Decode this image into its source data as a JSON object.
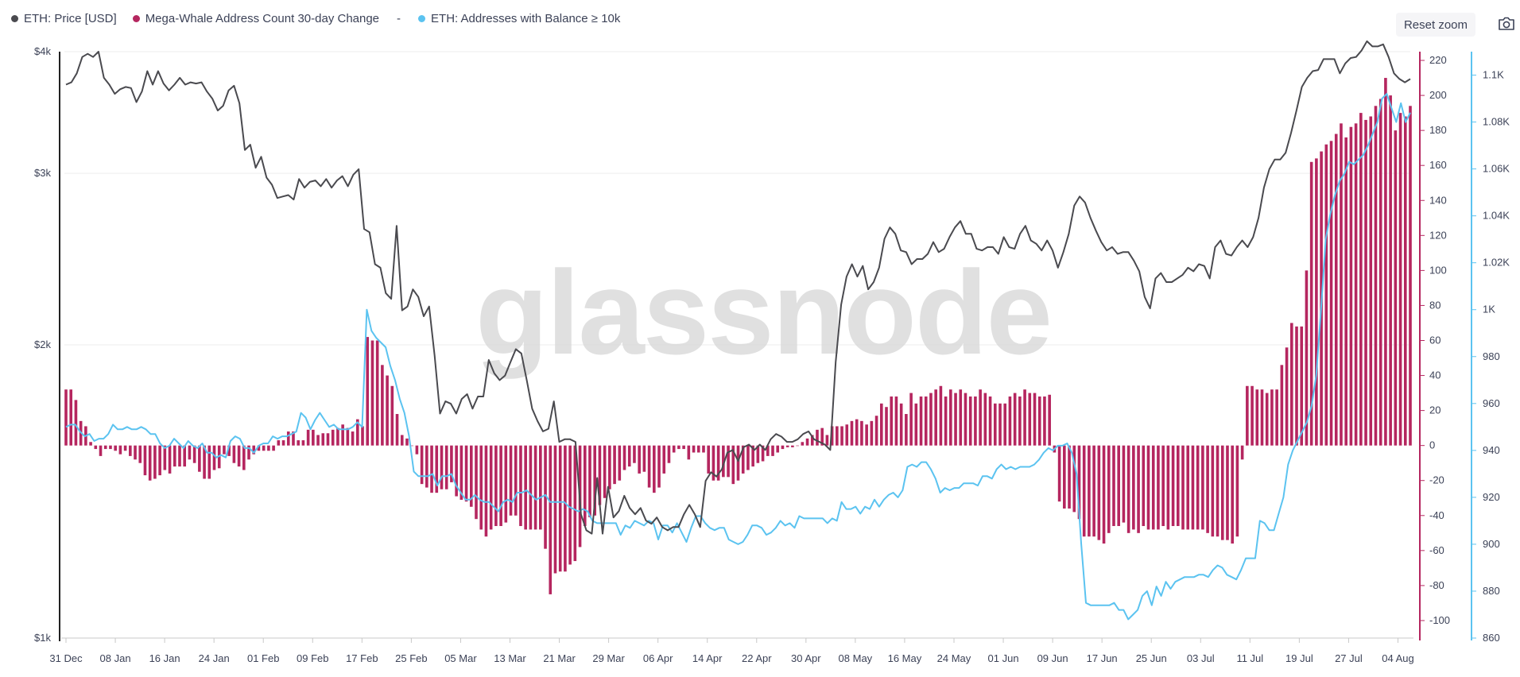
{
  "legend": {
    "price_label": "ETH: Price [USD]",
    "whale_label": "Mega-Whale Address Count 30-day Change",
    "separator": "-",
    "addr_label": "ETH: Addresses with Balance ≥ 10k"
  },
  "toolbar": {
    "reset_zoom_label": "Reset zoom",
    "camera_icon": "camera-icon"
  },
  "watermark": "glassnode",
  "colors": {
    "price": "#4a4a4f",
    "whale": "#b5265f",
    "addr": "#5bc3f0",
    "grid": "#eeeeee",
    "axis_text": "#3c4257"
  },
  "chart_data": {
    "type": "line",
    "x_ticks": [
      "31 Dec",
      "08 Jan",
      "16 Jan",
      "24 Jan",
      "01 Feb",
      "09 Feb",
      "17 Feb",
      "25 Feb",
      "05 Mar",
      "13 Mar",
      "21 Mar",
      "29 Mar",
      "06 Apr",
      "14 Apr",
      "22 Apr",
      "30 Apr",
      "08 May",
      "16 May",
      "24 May",
      "01 Jun",
      "09 Jun",
      "17 Jun",
      "25 Jun",
      "03 Jul",
      "11 Jul",
      "19 Jul",
      "27 Jul",
      "04 Aug"
    ],
    "x_range_days": [
      0,
      218
    ],
    "y_left": {
      "ticks": [
        "$1k",
        "$2k",
        "$3k",
        "$4k"
      ],
      "values": [
        1000,
        2000,
        3000,
        4000
      ],
      "scale": "log",
      "range": [
        1000,
        4000
      ]
    },
    "y_right_bars": {
      "ticks": [
        "-100",
        "-80",
        "-60",
        "-40",
        "-20",
        "0",
        "20",
        "40",
        "60",
        "80",
        "100",
        "120",
        "140",
        "160",
        "180",
        "200",
        "220"
      ],
      "range": [
        -110,
        225
      ]
    },
    "y_right_addr": {
      "ticks": [
        "860",
        "880",
        "900",
        "920",
        "940",
        "960",
        "980",
        "1K",
        "1.02K",
        "1.04K",
        "1.06K",
        "1.08K",
        "1.1K"
      ],
      "range": [
        860,
        1110
      ]
    },
    "grid": true,
    "legend_position": "top-left",
    "series": [
      {
        "name": "ETH: Price [USD]",
        "type": "line",
        "axis": "left",
        "values": [
          3700,
          3720,
          3800,
          3950,
          3980,
          3950,
          4000,
          3760,
          3700,
          3620,
          3660,
          3680,
          3670,
          3550,
          3640,
          3820,
          3700,
          3820,
          3710,
          3650,
          3700,
          3760,
          3700,
          3720,
          3710,
          3720,
          3640,
          3580,
          3480,
          3520,
          3650,
          3690,
          3540,
          3170,
          3210,
          3040,
          3120,
          2970,
          2920,
          2830,
          2840,
          2850,
          2820,
          2960,
          2900,
          2940,
          2950,
          2910,
          2960,
          2900,
          2950,
          2980,
          2910,
          2990,
          3030,
          2630,
          2610,
          2420,
          2400,
          2260,
          2230,
          2650,
          2170,
          2190,
          2280,
          2240,
          2140,
          2190,
          1950,
          1700,
          1750,
          1740,
          1700,
          1760,
          1780,
          1720,
          1770,
          1770,
          1930,
          1870,
          1840,
          1860,
          1920,
          1980,
          1960,
          1840,
          1720,
          1670,
          1630,
          1640,
          1750,
          1590,
          1600,
          1600,
          1590,
          1340,
          1290,
          1280,
          1460,
          1280,
          1430,
          1330,
          1350,
          1400,
          1360,
          1340,
          1360,
          1320,
          1310,
          1330,
          1300,
          1290,
          1300,
          1300,
          1340,
          1370,
          1340,
          1300,
          1450,
          1480,
          1465,
          1490,
          1550,
          1560,
          1520,
          1570,
          1580,
          1560,
          1580,
          1560,
          1600,
          1620,
          1610,
          1590,
          1590,
          1600,
          1620,
          1630,
          1600,
          1590,
          1580,
          1560,
          1920,
          2200,
          2350,
          2420,
          2350,
          2410,
          2280,
          2320,
          2400,
          2570,
          2640,
          2600,
          2500,
          2490,
          2420,
          2450,
          2450,
          2480,
          2550,
          2490,
          2510,
          2580,
          2640,
          2680,
          2600,
          2600,
          2510,
          2500,
          2520,
          2520,
          2480,
          2580,
          2520,
          2510,
          2600,
          2650,
          2560,
          2540,
          2500,
          2560,
          2500,
          2400,
          2490,
          2600,
          2780,
          2840,
          2800,
          2700,
          2620,
          2550,
          2500,
          2520,
          2480,
          2490,
          2490,
          2440,
          2380,
          2240,
          2180,
          2340,
          2370,
          2320,
          2320,
          2340,
          2360,
          2400,
          2380,
          2420,
          2410,
          2340,
          2520,
          2560,
          2480,
          2470,
          2520,
          2560,
          2520,
          2580,
          2700,
          2900,
          3030,
          3100,
          3100,
          3150,
          3300,
          3480,
          3680,
          3760,
          3820,
          3830,
          3930,
          3930,
          3930,
          3800,
          3890,
          3940,
          3950,
          4010,
          4100,
          4050,
          4050,
          4070,
          3950,
          3800,
          3750,
          3720,
          3750
        ]
      },
      {
        "name": "Mega-Whale Address Count 30-day Change",
        "type": "bar",
        "axis": "right",
        "values": [
          32,
          32,
          26,
          14,
          11,
          2,
          -2,
          -6,
          -2,
          -2,
          -3,
          -5,
          -3,
          -6,
          -8,
          -10,
          -17,
          -20,
          -19,
          -17,
          -14,
          -16,
          -12,
          -12,
          -12,
          -8,
          -10,
          -15,
          -19,
          -19,
          -14,
          -13,
          -5,
          -6,
          -10,
          -12,
          -14,
          -8,
          -5,
          -3,
          -3,
          -3,
          -3,
          3,
          3,
          8,
          8,
          3,
          3,
          9,
          9,
          6,
          7,
          7,
          9,
          10,
          12,
          10,
          8,
          15,
          11,
          62,
          60,
          60,
          46,
          40,
          34,
          18,
          6,
          4,
          0,
          -5,
          -22,
          -24,
          -27,
          -27,
          -25,
          -25,
          -21,
          -29,
          -31,
          -32,
          -35,
          -42,
          -48,
          -52,
          -48,
          -46,
          -46,
          -44,
          -40,
          -40,
          -46,
          -48,
          -48,
          -48,
          -48,
          -59,
          -85,
          -73,
          -72,
          -72,
          -68,
          -66,
          -58,
          -46,
          -41,
          -40,
          -34,
          -30,
          -25,
          -22,
          -20,
          -14,
          -12,
          -10,
          -16,
          -15,
          -24,
          -27,
          -24,
          -16,
          -10,
          -4,
          -2,
          -2,
          -8,
          -4,
          -4,
          -4,
          -16,
          -20,
          -20,
          -18,
          -18,
          -22,
          -20,
          -16,
          -14,
          -12,
          -10,
          -9,
          -6,
          -6,
          -4,
          -2,
          -1,
          -1,
          0,
          2,
          4,
          6,
          9,
          10,
          6,
          11,
          11,
          11,
          12,
          14,
          15,
          14,
          12,
          14,
          17,
          24,
          22,
          28,
          28,
          24,
          18,
          30,
          24,
          28,
          28,
          30,
          32,
          34,
          28,
          32,
          30,
          32,
          30,
          28,
          28,
          32,
          30,
          28,
          24,
          24,
          24,
          28,
          30,
          28,
          32,
          30,
          30,
          28,
          28,
          29,
          -4,
          -32,
          -36,
          -36,
          -38,
          -42,
          -52,
          -52,
          -52,
          -54,
          -56,
          -50,
          -46,
          -46,
          -44,
          -50,
          -48,
          -50,
          -46,
          -48,
          -48,
          -48,
          -46,
          -48,
          -46,
          -46,
          -48,
          -48,
          -48,
          -48,
          -48,
          -50,
          -52,
          -52,
          -54,
          -54,
          -56,
          -52,
          -8,
          34,
          34,
          32,
          32,
          30,
          32,
          32,
          46,
          56,
          70,
          68,
          68,
          100,
          162,
          164,
          168,
          172,
          174,
          178,
          184,
          176,
          182,
          184,
          190,
          186,
          188,
          194,
          198,
          210,
          200,
          180,
          190,
          188,
          194
        ]
      },
      {
        "name": "ETH: Addresses with Balance ≥ 10k",
        "type": "line",
        "axis": "right",
        "values": [
          950,
          951,
          951,
          948,
          946,
          947,
          944,
          945,
          945,
          947,
          951,
          949,
          949,
          950,
          949,
          949,
          950,
          949,
          947,
          947,
          943,
          941,
          942,
          945,
          943,
          941,
          944,
          942,
          941,
          943,
          939,
          939,
          937,
          938,
          937,
          944,
          946,
          945,
          941,
          941,
          939,
          942,
          943,
          943,
          946,
          945,
          946,
          946,
          947,
          948,
          956,
          954,
          949,
          953,
          956,
          953,
          950,
          951,
          949,
          949,
          949,
          950,
          952,
          950,
          1000,
          991,
          988,
          986,
          984,
          976,
          970,
          962,
          956,
          946,
          931,
          929,
          929,
          929,
          930,
          925,
          929,
          929,
          930,
          925,
          922,
          919,
          919,
          921,
          919,
          918,
          918,
          916,
          914,
          918,
          919,
          918,
          922,
          922,
          923,
          921,
          919,
          920,
          921,
          918,
          918,
          918,
          918,
          916,
          915,
          914,
          915,
          914,
          910,
          909,
          909,
          909,
          909,
          909,
          904,
          908,
          907,
          910,
          909,
          908,
          910,
          909,
          902,
          908,
          908,
          905,
          909,
          905,
          901,
          907,
          912,
          912,
          909,
          907,
          906,
          907,
          907,
          902,
          901,
          900,
          901,
          904,
          908,
          908,
          907,
          904,
          905,
          907,
          910,
          908,
          909,
          907,
          912,
          911,
          911,
          911,
          911,
          911,
          909,
          911,
          910,
          918,
          915,
          915,
          916,
          913,
          916,
          915,
          919,
          916,
          919,
          921,
          922,
          920,
          923,
          933,
          934,
          933,
          935,
          935,
          932,
          928,
          922,
          924,
          923,
          924,
          924,
          926,
          926,
          926,
          925,
          929,
          929,
          928,
          932,
          934,
          932,
          933,
          932,
          933,
          933,
          933,
          934,
          936,
          939,
          941,
          940,
          942,
          942,
          943,
          939,
          930,
          900,
          875,
          874,
          874,
          874,
          874,
          874,
          875,
          872,
          872,
          868,
          870,
          872,
          878,
          880,
          874,
          882,
          878,
          884,
          881,
          884,
          885,
          886,
          886,
          886,
          887,
          887,
          886,
          889,
          891,
          890,
          887,
          886,
          885,
          889,
          894,
          894,
          894,
          910,
          909,
          906,
          906,
          913,
          920,
          934,
          940,
          944,
          948,
          952,
          959,
          972,
          1000,
          1030,
          1041,
          1049,
          1055,
          1058,
          1063,
          1062,
          1064,
          1066,
          1070,
          1075,
          1080,
          1090,
          1092,
          1086,
          1080,
          1088,
          1080,
          1084
        ]
      }
    ]
  }
}
